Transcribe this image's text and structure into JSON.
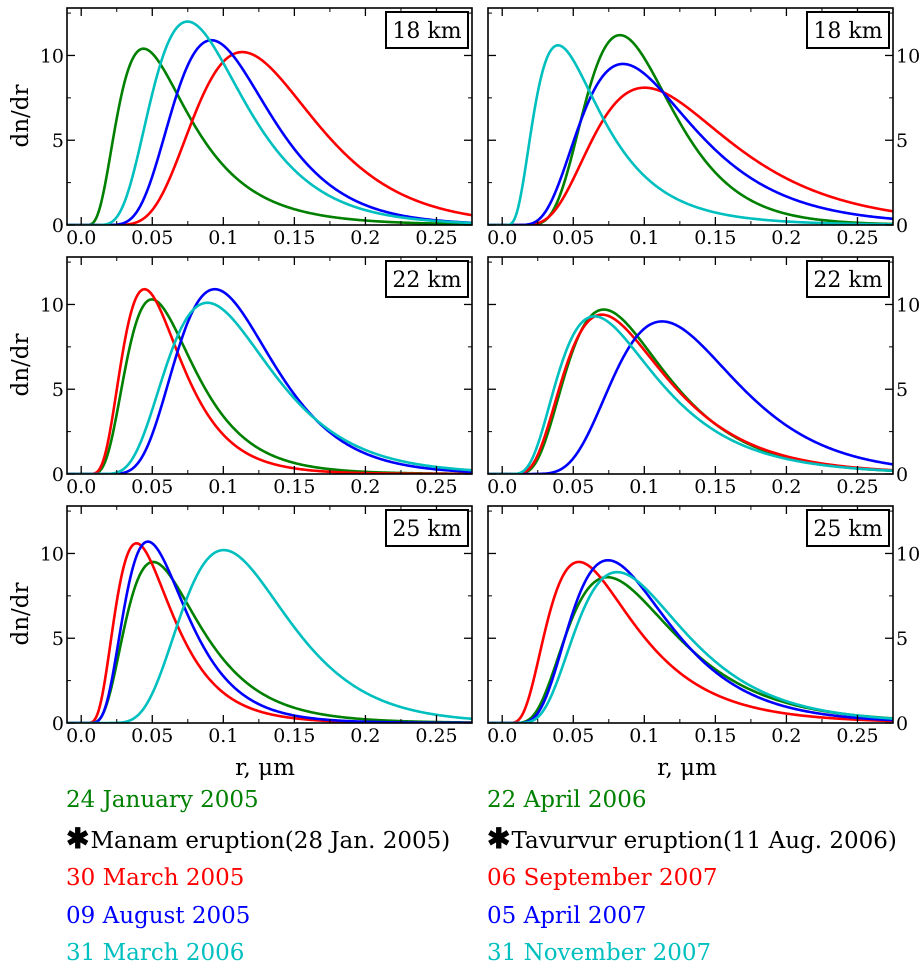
{
  "figure": {
    "xlabel": "r, μm",
    "ylabel": "dn/dr"
  },
  "colors": {
    "green": "#008000",
    "black": "#000000",
    "red": "#ff0000",
    "blue": "#0000ff",
    "cyan": "#00bfbf"
  },
  "legend": {
    "left": [
      {
        "label": "24 January 2005",
        "color": "#008000",
        "marker": ""
      },
      {
        "label": "Manam eruption(28 Jan. 2005)",
        "color": "#000000",
        "marker": "asterisk"
      },
      {
        "label": "30 March 2005",
        "color": "#ff0000",
        "marker": ""
      },
      {
        "label": "09 August 2005",
        "color": "#0000ff",
        "marker": ""
      },
      {
        "label": "31 March 2006",
        "color": "#00bfbf",
        "marker": ""
      }
    ],
    "right": [
      {
        "label": "22 April 2006",
        "color": "#008000",
        "marker": ""
      },
      {
        "label": "Tavurvur eruption(11 Aug. 2006)",
        "color": "#000000",
        "marker": "asterisk"
      },
      {
        "label": "06 September 2007",
        "color": "#ff0000",
        "marker": ""
      },
      {
        "label": "05 April 2007",
        "color": "#0000ff",
        "marker": ""
      },
      {
        "label": "31 November 2007",
        "color": "#00bfbf",
        "marker": ""
      }
    ]
  },
  "chart_data": [
    {
      "type": "line",
      "panel": "left-top",
      "annotation": "18 km",
      "xlim": [
        -0.01,
        0.275
      ],
      "ylim": [
        0,
        12.8
      ],
      "xticks": [
        0.0,
        0.05,
        0.1,
        0.15,
        0.2,
        0.25
      ],
      "xtick_labels": [
        "0.0",
        "0.05",
        "0.1",
        "0.15",
        "0.2",
        "0.25"
      ],
      "yticks": [
        0,
        5,
        10
      ],
      "ytick_labels": [
        "0",
        "5",
        "10"
      ],
      "ytick_side": "left",
      "series": [
        {
          "color": "#008000",
          "peak_r": 0.06,
          "peak": 10.4,
          "sigma": 0.56
        },
        {
          "color": "#ff0000",
          "peak_r": 0.13,
          "peak": 10.2,
          "sigma": 0.37
        },
        {
          "color": "#0000ff",
          "peak_r": 0.105,
          "peak": 10.9,
          "sigma": 0.37
        },
        {
          "color": "#00bfbf",
          "peak_r": 0.09,
          "peak": 12.0,
          "sigma": 0.43
        }
      ]
    },
    {
      "type": "line",
      "panel": "right-top",
      "annotation": "18 km",
      "xlim": [
        -0.01,
        0.275
      ],
      "ylim": [
        0,
        12.8
      ],
      "xticks": [
        0.0,
        0.05,
        0.1,
        0.15,
        0.2,
        0.25
      ],
      "xtick_labels": [
        "0.0",
        "0.05",
        "0.1",
        "0.15",
        "0.2",
        "0.25"
      ],
      "yticks": [
        0,
        5,
        10
      ],
      "ytick_labels": [
        "0",
        "5",
        "10"
      ],
      "ytick_side": "right",
      "series": [
        {
          "color": "#008000",
          "peak_r": 0.095,
          "peak": 11.2,
          "sigma": 0.37
        },
        {
          "color": "#ff0000",
          "peak_r": 0.125,
          "peak": 8.1,
          "sigma": 0.47
        },
        {
          "color": "#0000ff",
          "peak_r": 0.105,
          "peak": 9.5,
          "sigma": 0.46
        },
        {
          "color": "#00bfbf",
          "peak_r": 0.055,
          "peak": 10.6,
          "sigma": 0.58
        }
      ]
    },
    {
      "type": "line",
      "panel": "left-mid",
      "annotation": "22 km",
      "xlim": [
        -0.01,
        0.275
      ],
      "ylim": [
        0,
        12.8
      ],
      "xticks": [
        0.0,
        0.05,
        0.1,
        0.15,
        0.2,
        0.25
      ],
      "xtick_labels": [
        "0.0",
        "0.05",
        "0.1",
        "0.15",
        "0.2",
        "0.25"
      ],
      "yticks": [
        0,
        5,
        10
      ],
      "ytick_labels": [
        "0",
        "5",
        "10"
      ],
      "ytick_side": "left",
      "series": [
        {
          "color": "#008000",
          "peak_r": 0.062,
          "peak": 10.3,
          "sigma": 0.47
        },
        {
          "color": "#ff0000",
          "peak_r": 0.055,
          "peak": 10.9,
          "sigma": 0.46
        },
        {
          "color": "#0000ff",
          "peak_r": 0.107,
          "peak": 10.9,
          "sigma": 0.36
        },
        {
          "color": "#00bfbf",
          "peak_r": 0.105,
          "peak": 10.1,
          "sigma": 0.41
        }
      ]
    },
    {
      "type": "line",
      "panel": "right-mid",
      "annotation": "22 km",
      "xlim": [
        -0.01,
        0.275
      ],
      "ylim": [
        0,
        12.8
      ],
      "xticks": [
        0.0,
        0.05,
        0.1,
        0.15,
        0.2,
        0.25
      ],
      "xtick_labels": [
        "0.0",
        "0.05",
        "0.1",
        "0.15",
        "0.2",
        "0.25"
      ],
      "yticks": [
        0,
        5,
        10
      ],
      "ytick_labels": [
        "0",
        "5",
        "10"
      ],
      "ytick_side": "right",
      "series": [
        {
          "color": "#008000",
          "peak_r": 0.09,
          "peak": 9.7,
          "sigma": 0.48
        },
        {
          "color": "#ff0000",
          "peak_r": 0.09,
          "peak": 9.4,
          "sigma": 0.5
        },
        {
          "color": "#0000ff",
          "peak_r": 0.13,
          "peak": 9.0,
          "sigma": 0.38
        },
        {
          "color": "#00bfbf",
          "peak_r": 0.085,
          "peak": 9.3,
          "sigma": 0.52
        }
      ]
    },
    {
      "type": "line",
      "panel": "left-bottom",
      "annotation": "25 km",
      "xlim": [
        -0.01,
        0.275
      ],
      "ylim": [
        0,
        12.8
      ],
      "xticks": [
        0.0,
        0.05,
        0.1,
        0.15,
        0.2,
        0.25
      ],
      "xtick_labels": [
        "0.0",
        "0.05",
        "0.1",
        "0.15",
        "0.2",
        "0.25"
      ],
      "yticks": [
        0,
        5,
        10
      ],
      "ytick_labels": [
        "0",
        "5",
        "10"
      ],
      "ytick_side": "left",
      "series": [
        {
          "color": "#008000",
          "peak_r": 0.065,
          "peak": 9.5,
          "sigma": 0.5
        },
        {
          "color": "#ff0000",
          "peak_r": 0.05,
          "peak": 10.6,
          "sigma": 0.5
        },
        {
          "color": "#0000ff",
          "peak_r": 0.058,
          "peak": 10.7,
          "sigma": 0.46
        },
        {
          "color": "#00bfbf",
          "peak_r": 0.115,
          "peak": 10.2,
          "sigma": 0.37
        }
      ]
    },
    {
      "type": "line",
      "panel": "right-bottom",
      "annotation": "25 km",
      "xlim": [
        -0.01,
        0.275
      ],
      "ylim": [
        0,
        12.8
      ],
      "xticks": [
        0.0,
        0.05,
        0.1,
        0.15,
        0.2,
        0.25
      ],
      "xtick_labels": [
        "0.0",
        "0.05",
        "0.1",
        "0.15",
        "0.2",
        "0.25"
      ],
      "yticks": [
        0,
        5,
        10
      ],
      "ytick_labels": [
        "0",
        "5",
        "10"
      ],
      "ytick_side": "right",
      "series": [
        {
          "color": "#008000",
          "peak_r": 0.095,
          "peak": 8.6,
          "sigma": 0.5
        },
        {
          "color": "#ff0000",
          "peak_r": 0.073,
          "peak": 9.5,
          "sigma": 0.55
        },
        {
          "color": "#0000ff",
          "peak_r": 0.092,
          "peak": 9.6,
          "sigma": 0.46
        },
        {
          "color": "#00bfbf",
          "peak_r": 0.1,
          "peak": 8.9,
          "sigma": 0.46
        }
      ]
    }
  ]
}
